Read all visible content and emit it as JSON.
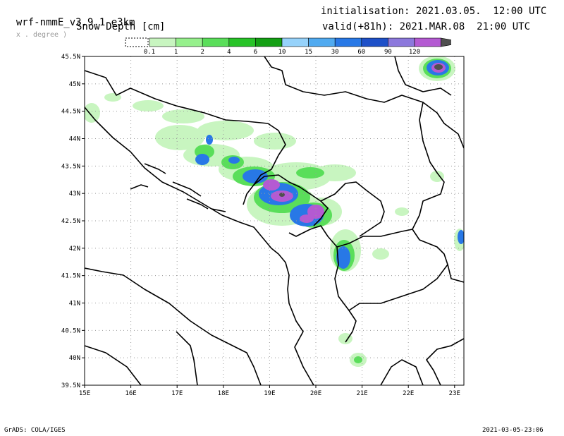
{
  "header": {
    "model": "wrf-nmmE_v3.9.1-e3km",
    "units_note": "x . degree )",
    "variable": "Snow Depth [cm]",
    "init_label": "initialisation: 2021.03.05.  12:00 UTC",
    "valid_label": "valid(+81h): 2021.MAR.08  21:00 UTC"
  },
  "colorbar": {
    "levels": [
      "0.1",
      "1",
      "2",
      "4",
      "6",
      "10",
      "15",
      "30",
      "60",
      "90",
      "120"
    ],
    "colors": [
      "#c8f5c0",
      "#96f08c",
      "#5ade5a",
      "#28c328",
      "#14a014",
      "#96d2fa",
      "#50aaf0",
      "#2878e6",
      "#1e50c8",
      "#8c78dc",
      "#b45ad2",
      "#505050"
    ]
  },
  "map": {
    "lat_labels": [
      "45.5N",
      "45N",
      "44.5N",
      "44N",
      "43.5N",
      "43N",
      "42.5N",
      "42N",
      "41.5N",
      "41N",
      "40.5N",
      "40N",
      "39.5N"
    ],
    "lon_labels": [
      "15E",
      "16E",
      "17E",
      "18E",
      "19E",
      "20E",
      "21E",
      "22E",
      "23E"
    ]
  },
  "footer": {
    "left": "GrADS: COLA/IGES",
    "right": "2021-03-05-23:06"
  }
}
